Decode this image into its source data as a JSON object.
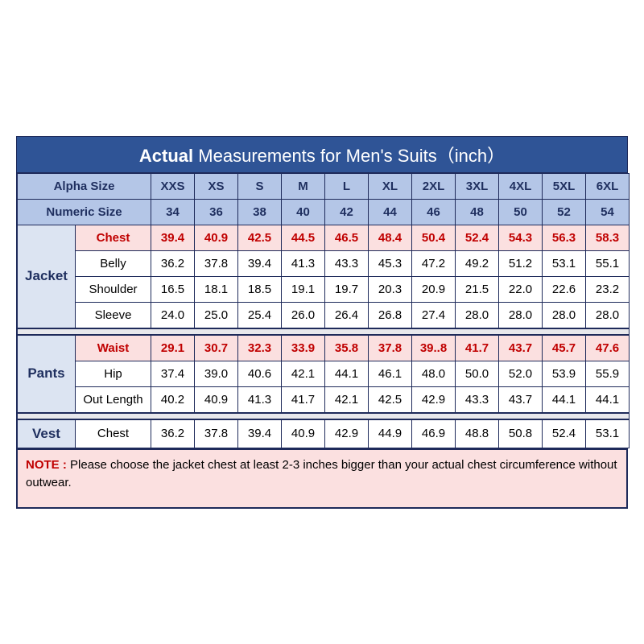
{
  "title": {
    "bold": "Actual",
    "rest": " Measurements for Men's Suits（inch）"
  },
  "headers": {
    "alpha_label": "Alpha Size",
    "numeric_label": "Numeric Size",
    "alpha": [
      "XXS",
      "XS",
      "S",
      "M",
      "L",
      "XL",
      "2XL",
      "3XL",
      "4XL",
      "5XL",
      "6XL"
    ],
    "numeric": [
      "34",
      "36",
      "38",
      "40",
      "42",
      "44",
      "46",
      "48",
      "50",
      "52",
      "54"
    ]
  },
  "sections": [
    {
      "name": "Jacket",
      "rows": [
        {
          "label": "Chest",
          "highlight": true,
          "values": [
            "39.4",
            "40.9",
            "42.5",
            "44.5",
            "46.5",
            "48.4",
            "50.4",
            "52.4",
            "54.3",
            "56.3",
            "58.3"
          ]
        },
        {
          "label": "Belly",
          "highlight": false,
          "values": [
            "36.2",
            "37.8",
            "39.4",
            "41.3",
            "43.3",
            "45.3",
            "47.2",
            "49.2",
            "51.2",
            "53.1",
            "55.1"
          ]
        },
        {
          "label": "Shoulder",
          "highlight": false,
          "values": [
            "16.5",
            "18.1",
            "18.5",
            "19.1",
            "19.7",
            "20.3",
            "20.9",
            "21.5",
            "22.0",
            "22.6",
            "23.2"
          ]
        },
        {
          "label": "Sleeve",
          "highlight": false,
          "values": [
            "24.0",
            "25.0",
            "25.4",
            "26.0",
            "26.4",
            "26.8",
            "27.4",
            "28.0",
            "28.0",
            "28.0",
            "28.0"
          ]
        }
      ]
    },
    {
      "name": "Pants",
      "rows": [
        {
          "label": "Waist",
          "highlight": true,
          "values": [
            "29.1",
            "30.7",
            "32.3",
            "33.9",
            "35.8",
            "37.8",
            "39..8",
            "41.7",
            "43.7",
            "45.7",
            "47.6"
          ]
        },
        {
          "label": "Hip",
          "highlight": false,
          "values": [
            "37.4",
            "39.0",
            "40.6",
            "42.1",
            "44.1",
            "46.1",
            "48.0",
            "50.0",
            "52.0",
            "53.9",
            "55.9"
          ]
        },
        {
          "label": "Out Length",
          "highlight": false,
          "values": [
            "40.2",
            "40.9",
            "41.3",
            "41.7",
            "42.1",
            "42.5",
            "42.9",
            "43.3",
            "43.7",
            "44.1",
            "44.1"
          ]
        }
      ]
    },
    {
      "name": "Vest",
      "rows": [
        {
          "label": "Chest",
          "highlight": false,
          "values": [
            "36.2",
            "37.8",
            "39.4",
            "40.9",
            "42.9",
            "44.9",
            "46.9",
            "48.8",
            "50.8",
            "52.4",
            "53.1"
          ]
        }
      ]
    }
  ],
  "note": {
    "label": "NOTE :",
    "text": " Please choose the jacket chest at least 2-3 inches bigger than your actual chest circumference without outwear."
  },
  "style": {
    "title_bg": "#2f5496",
    "header_bg": "#b4c6e7",
    "section_bg": "#dce4f2",
    "highlight_bg": "#fbe0e0",
    "highlight_color": "#c00000",
    "border_color": "#1e2a5a",
    "gap_bg": "#e8e8ec"
  }
}
